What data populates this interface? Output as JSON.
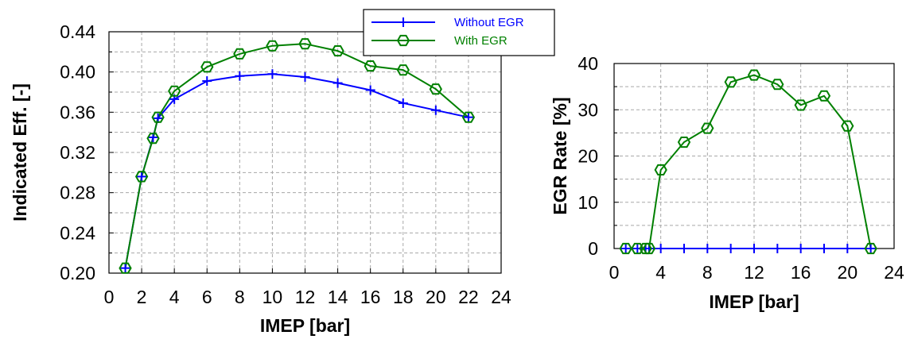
{
  "chart_data": [
    {
      "type": "line",
      "xlabel": "IMEP [bar]",
      "ylabel": "Indicated Eff. [-]",
      "xlim": [
        0,
        24
      ],
      "ylim": [
        0.2,
        0.44
      ],
      "xticks": [
        0,
        2,
        4,
        6,
        8,
        10,
        12,
        14,
        16,
        18,
        20,
        22,
        24
      ],
      "yticks": [
        0.2,
        0.24,
        0.28,
        0.32,
        0.36,
        0.4,
        0.44
      ],
      "ytick_labels": [
        "0.20",
        "0.24",
        "0.28",
        "0.32",
        "0.36",
        "0.40",
        "0.44"
      ],
      "grid": true,
      "legend_position": "top-right, above plot",
      "series": [
        {
          "name": "Without EGR",
          "color": "#0000ff",
          "marker": "plus",
          "x": [
            1,
            2,
            2.7,
            3,
            4,
            6,
            8,
            10,
            12,
            14,
            16,
            18,
            20,
            22
          ],
          "y": [
            0.205,
            0.296,
            0.335,
            0.354,
            0.373,
            0.391,
            0.396,
            0.398,
            0.395,
            0.389,
            0.382,
            0.369,
            0.362,
            0.355
          ]
        },
        {
          "name": "With EGR",
          "color": "#008000",
          "marker": "hexagon",
          "x": [
            1,
            2,
            2.7,
            3,
            4,
            6,
            8,
            10,
            12,
            14,
            16,
            18,
            20,
            22
          ],
          "y": [
            0.205,
            0.296,
            0.334,
            0.355,
            0.381,
            0.405,
            0.418,
            0.426,
            0.428,
            0.421,
            0.406,
            0.402,
            0.383,
            0.355
          ]
        }
      ]
    },
    {
      "type": "line",
      "xlabel": "IMEP [bar]",
      "ylabel": "EGR Rate [%]",
      "xlim": [
        0,
        24
      ],
      "ylim": [
        0,
        40
      ],
      "xticks": [
        0,
        4,
        8,
        12,
        16,
        20,
        24
      ],
      "yticks": [
        0,
        10,
        20,
        30,
        40
      ],
      "grid": true,
      "series": [
        {
          "name": "Without EGR",
          "color": "#0000ff",
          "marker": "plus",
          "x": [
            1,
            2,
            2.7,
            3,
            4,
            6,
            8,
            10,
            12,
            14,
            16,
            18,
            20,
            22
          ],
          "y": [
            0,
            0,
            0,
            0,
            0,
            0,
            0,
            0,
            0,
            0,
            0,
            0,
            0,
            0
          ]
        },
        {
          "name": "With EGR",
          "color": "#008000",
          "marker": "hexagon",
          "x": [
            1,
            2,
            2.7,
            3,
            4,
            6,
            8,
            10,
            12,
            14,
            16,
            18,
            20,
            22
          ],
          "y": [
            0,
            0,
            0,
            0,
            17,
            23,
            26,
            36,
            37.5,
            35.5,
            31,
            33,
            26.5,
            0
          ]
        }
      ]
    }
  ]
}
